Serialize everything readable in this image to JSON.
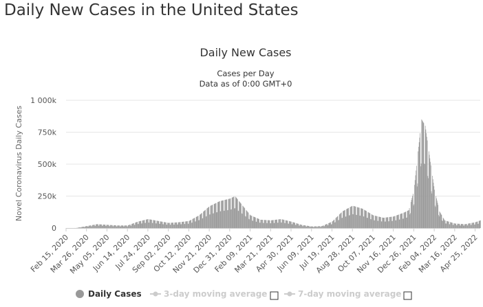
{
  "page": {
    "title": "Daily New Cases in the United States"
  },
  "chart_data": {
    "type": "bar",
    "title": "Daily New Cases",
    "subtitle_1": "Cases per Day",
    "subtitle_2": "Data as of 0:00 GMT+0",
    "ylabel": "Novel Coronavirus Daily Cases",
    "xlabel": "",
    "ylim": [
      0,
      1000000
    ],
    "y_ticks": [
      {
        "value": 0,
        "label": "0"
      },
      {
        "value": 250000,
        "label": "250k"
      },
      {
        "value": 500000,
        "label": "500k"
      },
      {
        "value": 750000,
        "label": "750k"
      },
      {
        "value": 1000000,
        "label": "1 000k"
      }
    ],
    "x_tick_labels": [
      "Feb 15, 2020",
      "Mar 26, 2020",
      "May 05, 2020",
      "Jun 14, 2020",
      "Jul 24, 2020",
      "Sep 02, 2020",
      "Oct 12, 2020",
      "Nov 21, 2020",
      "Dec 31, 2020",
      "Feb 09, 2021",
      "Mar 21, 2021",
      "Apr 30, 2021",
      "Jun 09, 2021",
      "Jul 19, 2021",
      "Aug 28, 2021",
      "Oct 07, 2021",
      "Nov 16, 2021",
      "Dec 26, 2021",
      "Feb 04, 2022",
      "Mar 16, 2022",
      "Apr 25, 2022"
    ],
    "grid": true,
    "legend_position": "bottom",
    "series": [
      {
        "name": "Daily Cases",
        "color": "#999999",
        "visible": true,
        "x": [
          "Feb 15, 2020",
          "Mar 05, 2020",
          "Mar 26, 2020",
          "Apr 15, 2020",
          "May 05, 2020",
          "May 25, 2020",
          "Jun 14, 2020",
          "Jul 04, 2020",
          "Jul 24, 2020",
          "Aug 13, 2020",
          "Sep 02, 2020",
          "Sep 22, 2020",
          "Oct 12, 2020",
          "Nov 01, 2020",
          "Nov 21, 2020",
          "Dec 11, 2020",
          "Dec 31, 2020",
          "Jan 10, 2021",
          "Jan 20, 2021",
          "Feb 09, 2021",
          "Mar 01, 2021",
          "Mar 21, 2021",
          "Apr 10, 2021",
          "Apr 30, 2021",
          "May 20, 2021",
          "Jun 09, 2021",
          "Jun 29, 2021",
          "Jul 19, 2021",
          "Aug 08, 2021",
          "Aug 28, 2021",
          "Sep 17, 2021",
          "Oct 07, 2021",
          "Oct 27, 2021",
          "Nov 16, 2021",
          "Dec 06, 2021",
          "Dec 16, 2021",
          "Dec 26, 2021",
          "Jan 03, 2022",
          "Jan 10, 2022",
          "Jan 17, 2022",
          "Jan 24, 2022",
          "Feb 04, 2022",
          "Feb 14, 2022",
          "Feb 24, 2022",
          "Mar 16, 2022",
          "Apr 05, 2022",
          "Apr 25, 2022",
          "May 05, 2022"
        ],
        "values": [
          0,
          100,
          15000,
          30000,
          25000,
          20000,
          20000,
          50000,
          70000,
          55000,
          40000,
          45000,
          55000,
          100000,
          170000,
          210000,
          230000,
          250000,
          200000,
          100000,
          65000,
          60000,
          70000,
          50000,
          25000,
          12000,
          15000,
          50000,
          130000,
          175000,
          150000,
          100000,
          80000,
          90000,
          120000,
          140000,
          300000,
          600000,
          850000,
          800000,
          600000,
          300000,
          130000,
          60000,
          35000,
          30000,
          45000,
          60000
        ]
      },
      {
        "name": "3-day moving average",
        "color": "#cccccc",
        "visible": false
      },
      {
        "name": "7-day moving average",
        "color": "#cccccc",
        "visible": false
      }
    ]
  }
}
